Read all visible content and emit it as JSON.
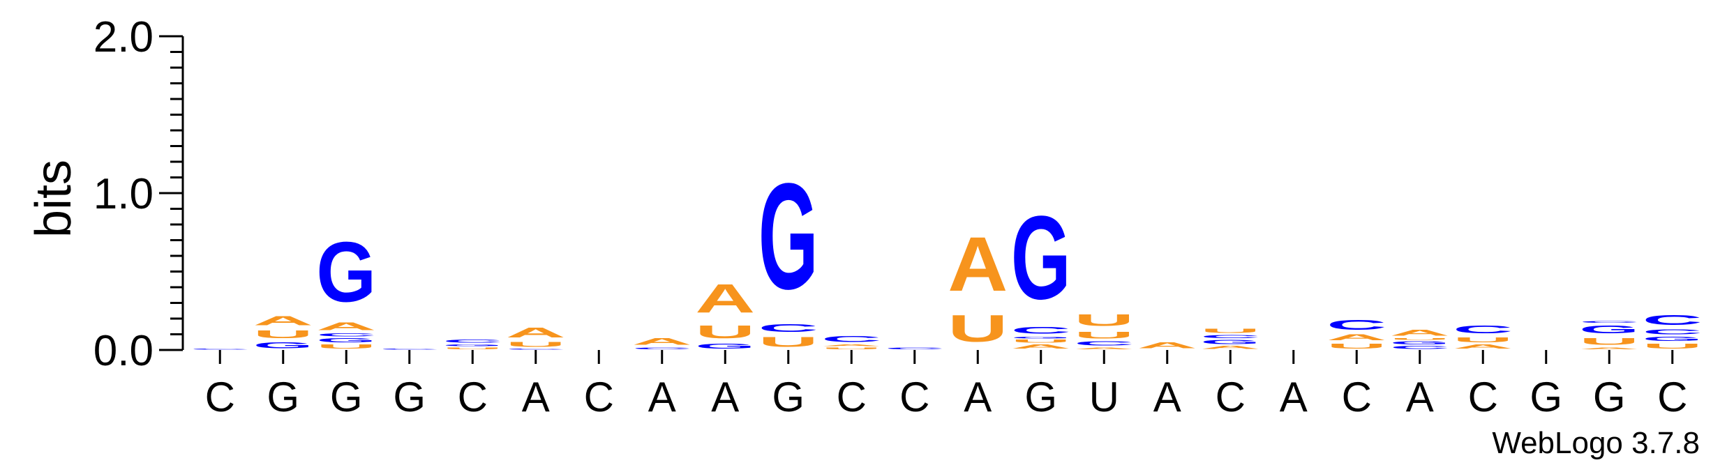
{
  "chart_data": {
    "type": "sequence-logo",
    "title": "",
    "xlabel": "",
    "ylabel": "bits",
    "ylim": [
      0,
      2.0
    ],
    "yticks": [
      "0.0",
      "1.0",
      "2.0"
    ],
    "positions": [
      "C",
      "G",
      "G",
      "G",
      "C",
      "A",
      "C",
      "A",
      "A",
      "G",
      "C",
      "C",
      "A",
      "G",
      "U",
      "A",
      "C",
      "A",
      "C",
      "A",
      "C",
      "G",
      "G",
      "C"
    ],
    "colors": {
      "A": "#f7941d",
      "U": "#f7941d",
      "G": "#0000ff",
      "C": "#0000ff"
    },
    "columns": [
      [
        {
          "b": "C",
          "h": 0.01
        }
      ],
      [
        {
          "b": "G",
          "h": 0.06
        },
        {
          "b": "U",
          "h": 0.08
        },
        {
          "b": "A",
          "h": 0.09
        }
      ],
      [
        {
          "b": "U",
          "h": 0.04
        },
        {
          "b": "G",
          "h": 0.04
        },
        {
          "b": "C",
          "h": 0.03
        },
        {
          "b": "A",
          "h": 0.08
        },
        {
          "b": "G",
          "h": 0.61
        }
      ],
      [
        {
          "b": "C",
          "h": 0.01
        }
      ],
      [
        {
          "b": "U",
          "h": 0.02
        },
        {
          "b": "G",
          "h": 0.02
        },
        {
          "b": "C",
          "h": 0.03
        }
      ],
      [
        {
          "b": "C",
          "h": 0.01
        },
        {
          "b": "U",
          "h": 0.05
        },
        {
          "b": "A",
          "h": 0.1
        }
      ],
      [],
      [
        {
          "b": "C",
          "h": 0.02
        },
        {
          "b": "A",
          "h": 0.07
        }
      ],
      [
        {
          "b": "G",
          "h": 0.05
        },
        {
          "b": "U",
          "h": 0.13
        },
        {
          "b": "A",
          "h": 0.29
        }
      ],
      [
        {
          "b": "U",
          "h": 0.1
        },
        {
          "b": "C",
          "h": 0.08
        },
        {
          "b": "G",
          "h": 1.08
        }
      ],
      [
        {
          "b": "U",
          "h": 0.02
        },
        {
          "b": "A",
          "h": 0.02
        },
        {
          "b": "C",
          "h": 0.06
        }
      ],
      [
        {
          "b": "C",
          "h": 0.02
        }
      ],
      [
        {
          "b": "U",
          "h": 0.27
        },
        {
          "b": "A",
          "h": 0.55
        }
      ],
      [
        {
          "b": "A",
          "h": 0.04
        },
        {
          "b": "U",
          "h": 0.03
        },
        {
          "b": "G",
          "h": 0.02
        },
        {
          "b": "C",
          "h": 0.07
        },
        {
          "b": "G",
          "h": 0.85
        }
      ],
      [
        {
          "b": "A",
          "h": 0.02
        },
        {
          "b": "C",
          "h": 0.04
        },
        {
          "b": "U",
          "h": 0.07
        },
        {
          "b": "U",
          "h": 0.12
        }
      ],
      [
        {
          "b": "A",
          "h": 0.06
        }
      ],
      [
        {
          "b": "A",
          "h": 0.03
        },
        {
          "b": "G",
          "h": 0.04
        },
        {
          "b": "C",
          "h": 0.03
        },
        {
          "b": "U",
          "h": 0.04
        }
      ],
      [],
      [
        {
          "b": "U",
          "h": 0.05
        },
        {
          "b": "A",
          "h": 0.06
        },
        {
          "b": "C",
          "h": 0.1
        }
      ],
      [
        {
          "b": "C",
          "h": 0.03
        },
        {
          "b": "G",
          "h": 0.03
        },
        {
          "b": "U",
          "h": 0.02
        },
        {
          "b": "A",
          "h": 0.06
        }
      ],
      [
        {
          "b": "A",
          "h": 0.04
        },
        {
          "b": "U",
          "h": 0.05
        },
        {
          "b": "C",
          "h": 0.08
        }
      ],
      [],
      [
        {
          "b": "A",
          "h": 0.02
        },
        {
          "b": "U",
          "h": 0.07
        },
        {
          "b": "G",
          "h": 0.08
        },
        {
          "b": "C",
          "h": 0.02
        }
      ],
      [
        {
          "b": "U",
          "h": 0.05
        },
        {
          "b": "G",
          "h": 0.04
        },
        {
          "b": "C",
          "h": 0.05
        },
        {
          "b": "C",
          "h": 0.1
        }
      ]
    ],
    "footer": "WebLogo 3.7.8"
  }
}
